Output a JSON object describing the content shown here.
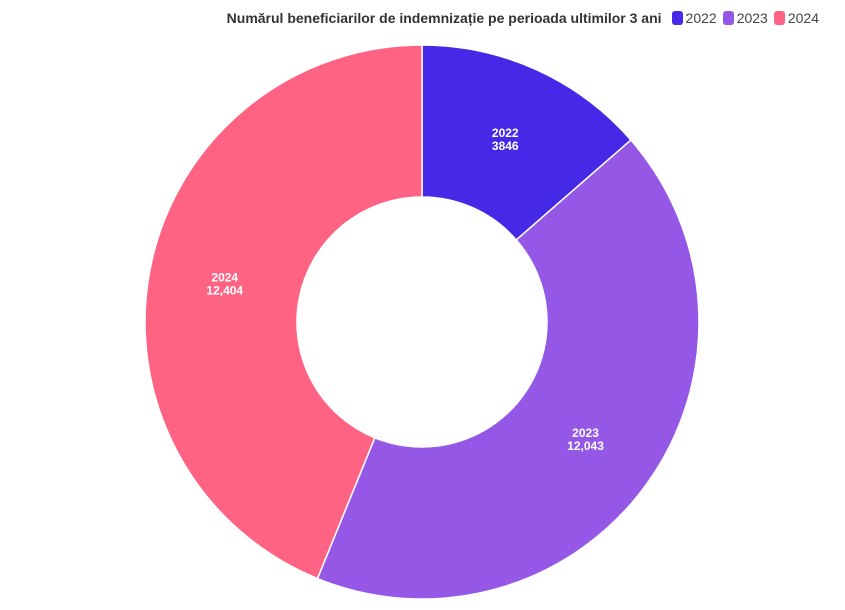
{
  "header": {
    "title": "Numărul beneficiarilor de indemnizație pe perioada ultimilor 3 ani"
  },
  "legend": [
    {
      "label": "2022",
      "color": "#4529e6"
    },
    {
      "label": "2023",
      "color": "#9457e6"
    },
    {
      "label": "2024",
      "color": "#ff6384"
    }
  ],
  "slices": [
    {
      "year": "2022",
      "value_label": "3846"
    },
    {
      "year": "2023",
      "value_label": "12,043"
    },
    {
      "year": "2024",
      "value_label": "12,404"
    }
  ],
  "chart_data": {
    "type": "pie",
    "subtype": "donut",
    "title": "Numărul beneficiarilor de indemnizație pe perioada ultimilor 3 ani",
    "categories": [
      "2022",
      "2023",
      "2024"
    ],
    "values": [
      3846,
      12043,
      12404
    ],
    "colors": [
      "#4529e6",
      "#9457e6",
      "#ff6384"
    ],
    "legend_position": "top-right",
    "data_labels": true
  }
}
